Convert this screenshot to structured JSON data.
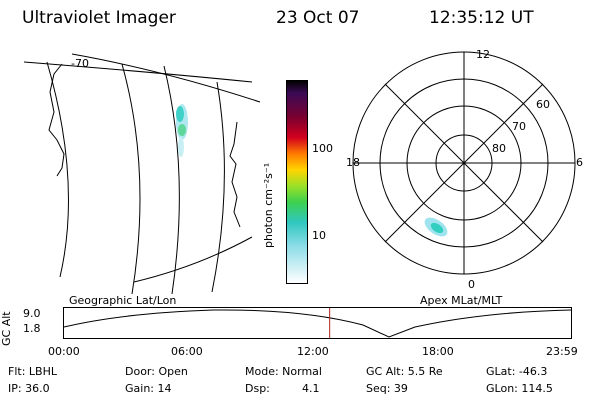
{
  "header": {
    "title": "Ultraviolet Imager",
    "date": "23 Oct 07",
    "time": "12:35:12 UT"
  },
  "geo_panel": {
    "label": "Geographic Lat/Lon",
    "meridian_label": "-70"
  },
  "colorbar": {
    "unit_label": "photon cm⁻²s⁻¹",
    "ticks": [
      "100",
      "10"
    ]
  },
  "polar_panel": {
    "label": "Apex MLat/MLT",
    "mlt_labels": {
      "top": "12",
      "left": "18",
      "right": "6",
      "bottom": "0"
    },
    "lat_labels": [
      "60",
      "70",
      "80"
    ]
  },
  "orbit": {
    "y_axis_label": "GC Alt",
    "y_ticks": [
      "9.0",
      "1.8"
    ],
    "x_ticks": [
      "00:00",
      "06:00",
      "12:00",
      "18:00",
      "23:59"
    ],
    "current_time_fraction": 0.524
  },
  "status": {
    "flt": "Flt: LBHL",
    "ip": "IP: 36.0",
    "door": "Door: Open",
    "gain": "Gain: 14",
    "mode": "Mode: Normal",
    "dsp_label": "Dsp:",
    "dsp_value": "4.1",
    "gc_alt": "GC Alt: 5.5 Re",
    "seq": "Seq: 39",
    "glat": "GLat: -46.3",
    "glon": "GLon: 114.5"
  }
}
